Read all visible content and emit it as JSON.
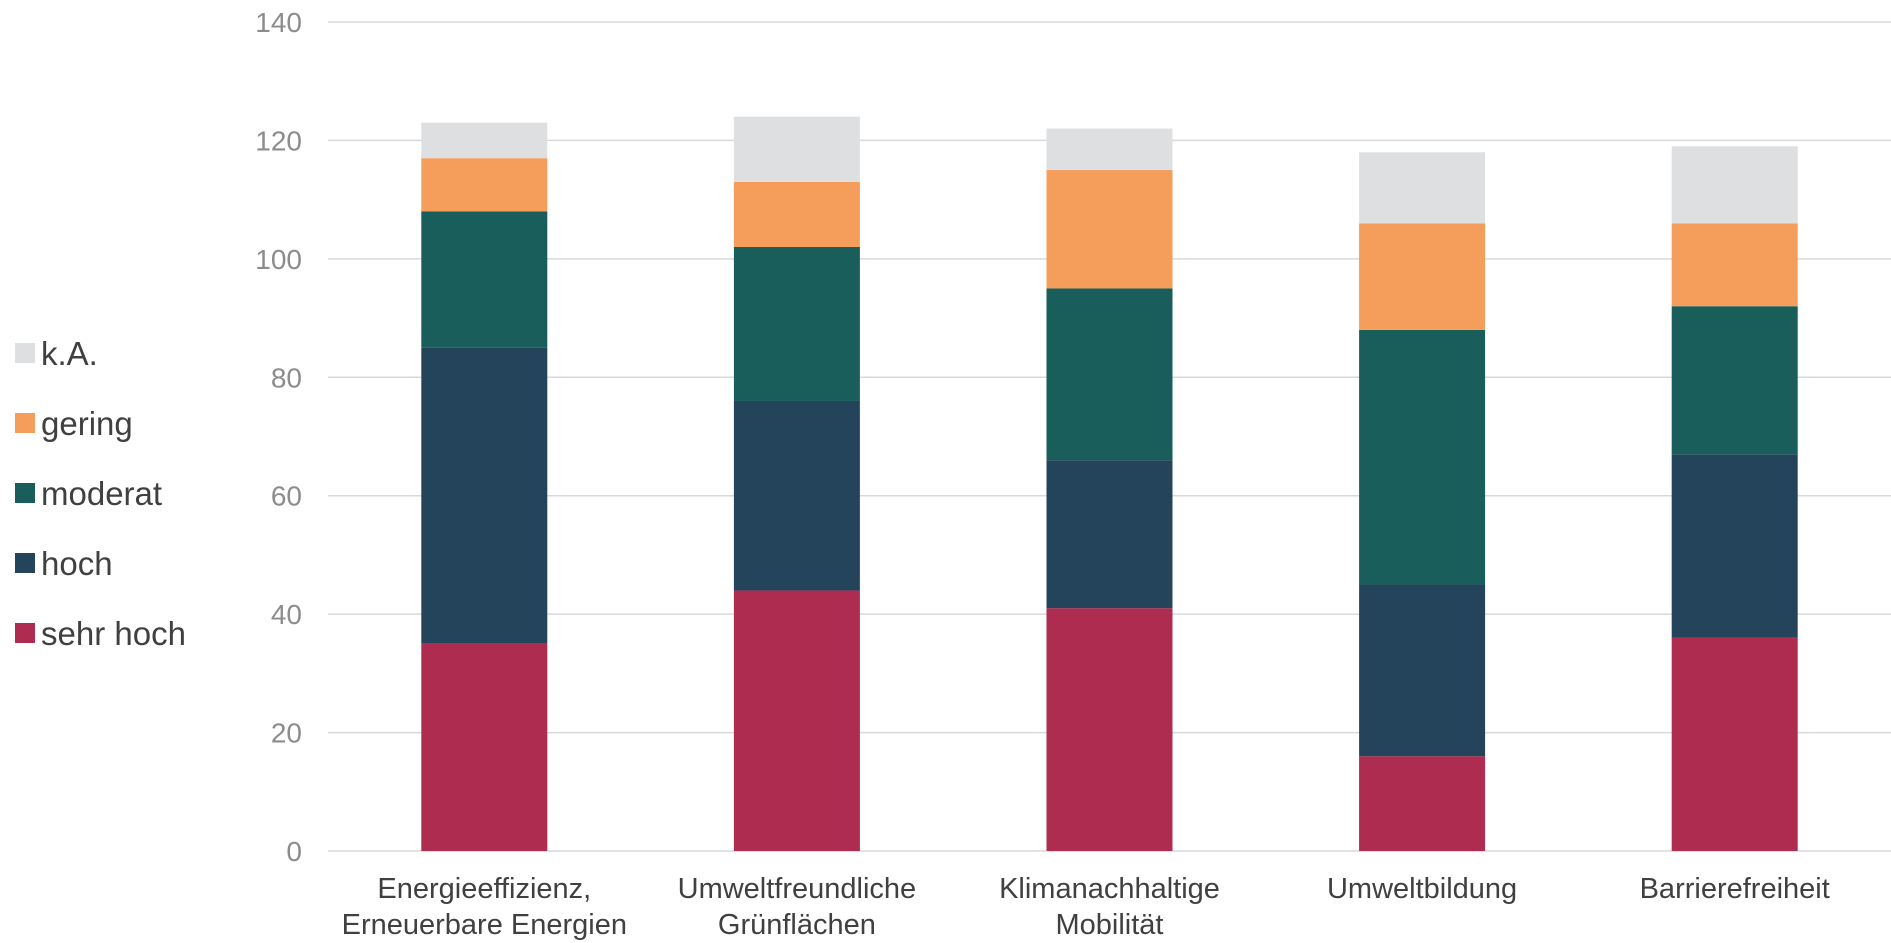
{
  "chart_data": {
    "type": "bar",
    "stacked": true,
    "categories": [
      [
        "Energieeffizienz,",
        "Erneuerbare Energien"
      ],
      [
        "Umweltfreundliche",
        "Grünflächen"
      ],
      [
        "Klimanachhaltige",
        "Mobilität"
      ],
      [
        "Umweltbildung"
      ],
      [
        "Barrierefreiheit"
      ]
    ],
    "series": [
      {
        "name": "sehr hoch",
        "color": "#ad2c4f",
        "values": [
          35,
          44,
          41,
          16,
          36
        ]
      },
      {
        "name": "hoch",
        "color": "#24445c",
        "values": [
          50,
          32,
          25,
          29,
          31
        ]
      },
      {
        "name": "moderat",
        "color": "#1a5e5b",
        "values": [
          23,
          26,
          29,
          43,
          25
        ]
      },
      {
        "name": "gering",
        "color": "#f59d5b",
        "values": [
          9,
          11,
          20,
          18,
          14
        ]
      },
      {
        "name": "k.A.",
        "color": "#dedfe1",
        "values": [
          6,
          11,
          7,
          12,
          13
        ]
      }
    ],
    "ylim": [
      0,
      140
    ],
    "yticks": [
      0,
      20,
      40,
      60,
      80,
      100,
      120,
      140
    ],
    "grid": true,
    "legend_position": "left",
    "title": "",
    "xlabel": "",
    "ylabel": ""
  }
}
